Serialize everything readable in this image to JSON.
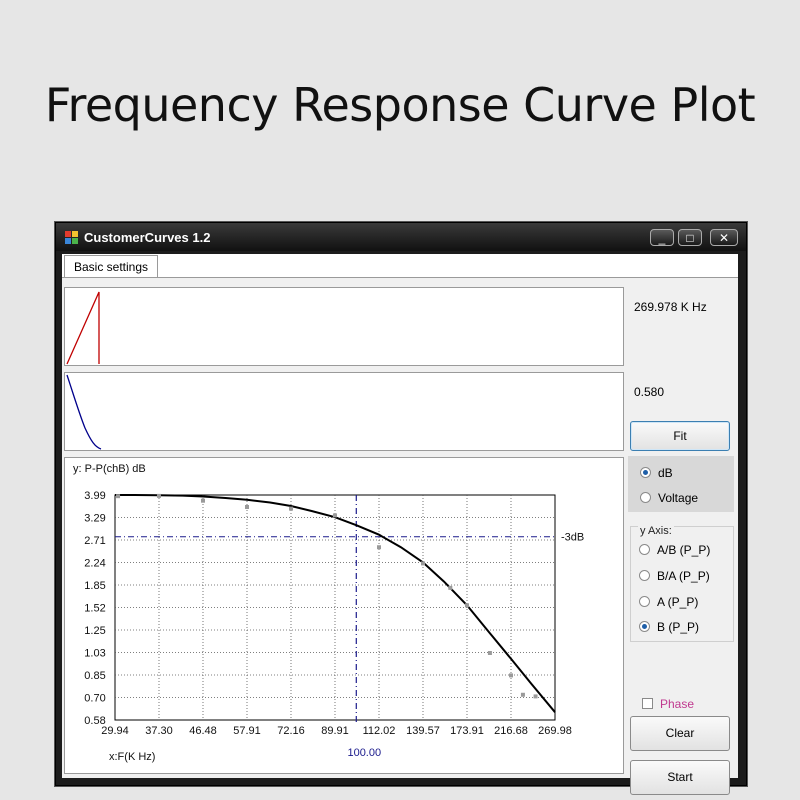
{
  "page": {
    "title": "Frequency Response Curve Plot"
  },
  "window": {
    "title": "CustomerCurves 1.2",
    "controls": {
      "minimize": "_",
      "maximize": "□",
      "close": "✕"
    }
  },
  "tab": {
    "label": "Basic settings"
  },
  "readouts": {
    "frequency": "269.978 K Hz",
    "value": "0.580"
  },
  "buttons": {
    "fit": "Fit",
    "clear": "Clear",
    "start": "Start"
  },
  "unit_radio": {
    "options": [
      {
        "label": "dB",
        "selected": true
      },
      {
        "label": "Voltage",
        "selected": false
      }
    ]
  },
  "y_axis": {
    "label": "y Axis:",
    "options": [
      {
        "label": "A/B (P_P)",
        "selected": false
      },
      {
        "label": "B/A (P_P)",
        "selected": false
      },
      {
        "label": "A (P_P)",
        "selected": false
      },
      {
        "label": "B (P_P)",
        "selected": true
      }
    ]
  },
  "phase": {
    "label": "Phase",
    "checked": false
  },
  "colors": {
    "mini_red": "#c00000",
    "mini_blue": "#00008b",
    "curve": "#000000",
    "marker_line": "#1a1a8c",
    "phase_text": "#c0398f"
  },
  "chart_data": {
    "type": "line",
    "title": "y: P-P(chB) dB",
    "xlabel": "x:F(K Hz)",
    "ylabel": "y: P-P(chB) dB",
    "x_ticks": [
      "29.94",
      "37.30",
      "46.48",
      "57.91",
      "72.16",
      "89.91",
      "112.02",
      "139.57",
      "173.91",
      "216.68",
      "269.98"
    ],
    "y_ticks": [
      "3.99",
      "3.29",
      "2.71",
      "2.24",
      "1.85",
      "1.52",
      "1.25",
      "1.03",
      "0.85",
      "0.70",
      "0.58"
    ],
    "x_scale": "log",
    "y_scale": "log",
    "xlim": [
      29.94,
      269.98
    ],
    "ylim": [
      0.58,
      3.99
    ],
    "grid": true,
    "marker_x": {
      "value": 100.0,
      "label": "100.00"
    },
    "threshold": {
      "value": 2.79,
      "label": "-3dB"
    },
    "fit_curve": {
      "x": [
        29.94,
        33.0,
        37.3,
        42.0,
        46.48,
        52.0,
        57.91,
        65.0,
        72.16,
        80.0,
        89.91,
        100.0,
        112.02,
        125.0,
        139.57,
        155.0,
        173.91,
        195.0,
        216.68,
        240.0,
        269.98
      ],
      "y": [
        3.99,
        3.99,
        3.98,
        3.97,
        3.94,
        3.89,
        3.83,
        3.74,
        3.63,
        3.48,
        3.3,
        3.08,
        2.84,
        2.55,
        2.24,
        1.9,
        1.55,
        1.22,
        0.98,
        0.79,
        0.62
      ]
    },
    "measured_points": {
      "x": [
        30.4,
        37.3,
        46.48,
        57.91,
        72.16,
        89.91,
        112.02,
        139.57,
        160.0,
        173.91,
        195.0,
        216.68,
        230.0,
        245.0
      ],
      "y": [
        3.95,
        3.96,
        3.8,
        3.6,
        3.55,
        3.35,
        2.55,
        2.22,
        1.8,
        1.55,
        1.03,
        0.85,
        0.72,
        0.71
      ]
    }
  }
}
